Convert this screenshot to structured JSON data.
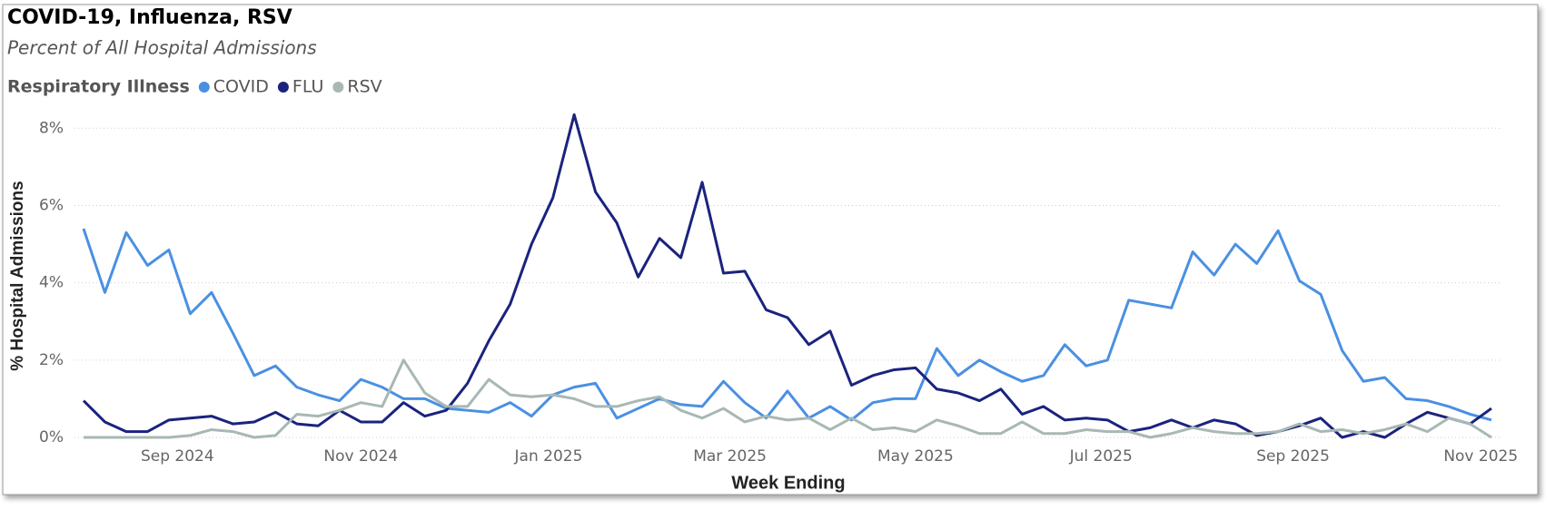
{
  "chart_data": {
    "type": "line",
    "title": "COVID-19, Influenza, RSV",
    "subtitle": "Percent of All Hospital Admissions",
    "legend_title": "Respiratory Illness",
    "x_label": "Week Ending",
    "y_label": "% Hospital Admissions",
    "x": [
      0,
      1,
      2,
      3,
      4,
      5,
      6,
      7,
      8,
      9,
      10,
      11,
      12,
      13,
      14,
      15,
      16,
      17,
      18,
      19,
      20,
      21,
      22,
      23,
      24,
      25,
      26,
      27,
      28,
      29,
      30,
      31,
      32,
      33,
      34,
      35,
      36,
      37,
      38,
      39,
      40,
      41,
      42,
      43,
      44,
      45,
      46,
      47,
      48,
      49,
      50,
      51,
      52,
      53,
      54,
      55,
      56,
      57,
      58,
      59,
      60,
      61,
      62,
      63,
      64,
      65,
      66
    ],
    "xlim": [
      0,
      66
    ],
    "xticks": [
      {
        "value": 4.4,
        "label": "Sep 2024"
      },
      {
        "value": 13.0,
        "label": "Nov 2024"
      },
      {
        "value": 21.8,
        "label": "Jan 2025"
      },
      {
        "value": 30.3,
        "label": "Mar 2025"
      },
      {
        "value": 39.0,
        "label": "May 2025"
      },
      {
        "value": 47.7,
        "label": "Jul 2025"
      },
      {
        "value": 56.7,
        "label": "Sep 2025"
      },
      {
        "value": 65.5,
        "label": "Nov 2025"
      }
    ],
    "ylim": [
      0,
      8.5
    ],
    "yticks": [
      {
        "value": 0,
        "label": "0%"
      },
      {
        "value": 2,
        "label": "2%"
      },
      {
        "value": 4,
        "label": "4%"
      },
      {
        "value": 6,
        "label": "6%"
      },
      {
        "value": 8,
        "label": "8%"
      }
    ],
    "grid": true,
    "series": [
      {
        "name": "COVID",
        "color": "#4a90e2",
        "values": [
          5.4,
          3.75,
          5.3,
          4.45,
          4.85,
          3.2,
          3.75,
          2.7,
          1.6,
          1.85,
          1.3,
          1.1,
          0.95,
          1.5,
          1.3,
          1.0,
          1.0,
          0.75,
          0.7,
          0.65,
          0.9,
          0.55,
          1.1,
          1.3,
          1.4,
          0.5,
          0.75,
          1.0,
          0.85,
          0.8,
          1.45,
          0.9,
          0.5,
          1.2,
          0.5,
          0.8,
          0.45,
          0.9,
          1.0,
          1.0,
          2.3,
          1.6,
          2.0,
          1.7,
          1.45,
          1.6,
          2.4,
          1.85,
          2.0,
          3.55,
          3.45,
          3.35,
          4.8,
          4.2,
          5.0,
          4.5,
          5.35,
          4.05,
          3.7,
          2.25,
          1.45,
          1.55,
          1.0,
          0.95,
          0.8,
          0.6,
          0.45
        ]
      },
      {
        "name": "FLU",
        "color": "#1a237e",
        "values": [
          0.95,
          0.4,
          0.15,
          0.15,
          0.45,
          0.5,
          0.55,
          0.35,
          0.4,
          0.65,
          0.35,
          0.3,
          0.7,
          0.4,
          0.4,
          0.9,
          0.55,
          0.7,
          1.4,
          2.5,
          3.45,
          5.0,
          6.2,
          8.35,
          6.35,
          5.55,
          4.15,
          5.15,
          4.65,
          6.6,
          4.25,
          4.3,
          3.3,
          3.1,
          2.4,
          2.75,
          1.35,
          1.6,
          1.75,
          1.8,
          1.25,
          1.15,
          0.95,
          1.25,
          0.6,
          0.8,
          0.45,
          0.5,
          0.45,
          0.15,
          0.25,
          0.45,
          0.25,
          0.45,
          0.35,
          0.05,
          0.15,
          0.3,
          0.5,
          0.0,
          0.15,
          0.0,
          0.35,
          0.65,
          0.5,
          0.35,
          0.75
        ]
      },
      {
        "name": "RSV",
        "color": "#a8b8b4",
        "values": [
          0,
          0,
          0,
          0,
          0,
          0.05,
          0.2,
          0.15,
          0.0,
          0.05,
          0.6,
          0.55,
          0.7,
          0.9,
          0.8,
          2.0,
          1.15,
          0.8,
          0.8,
          1.5,
          1.1,
          1.05,
          1.1,
          1.0,
          0.8,
          0.8,
          0.95,
          1.05,
          0.7,
          0.5,
          0.75,
          0.4,
          0.55,
          0.45,
          0.5,
          0.2,
          0.5,
          0.2,
          0.25,
          0.15,
          0.45,
          0.3,
          0.1,
          0.1,
          0.4,
          0.1,
          0.1,
          0.2,
          0.15,
          0.15,
          0.0,
          0.1,
          0.25,
          0.15,
          0.1,
          0.1,
          0.15,
          0.35,
          0.15,
          0.2,
          0.1,
          0.2,
          0.35,
          0.15,
          0.5,
          0.35,
          0.0
        ]
      }
    ]
  }
}
